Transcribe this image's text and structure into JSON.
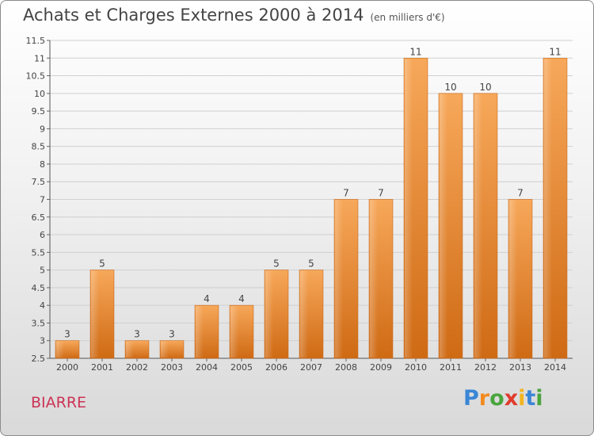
{
  "title": "Achats et Charges Externes 2000 à 2014",
  "subtitle": "(en milliers d'€)",
  "city": "BIARRE",
  "logo": {
    "text": "Proxiti",
    "colors": [
      "#3a86d6",
      "#f28a1f",
      "#49a53d",
      "#e03b2d",
      "#f2b51f",
      "#3a86d6",
      "#49a53d"
    ]
  },
  "chart_data": {
    "type": "bar",
    "categories": [
      "2000",
      "2001",
      "2002",
      "2003",
      "2004",
      "2005",
      "2006",
      "2007",
      "2008",
      "2009",
      "2010",
      "2011",
      "2012",
      "2013",
      "2014"
    ],
    "values": [
      3,
      5,
      3,
      3,
      4,
      4,
      5,
      5,
      7,
      7,
      11,
      10,
      10,
      7,
      11
    ],
    "data_labels": [
      "3",
      "5",
      "3",
      "3",
      "4",
      "4",
      "5",
      "5",
      "7",
      "7",
      "11",
      "10",
      "10",
      "7",
      "11"
    ],
    "title": "Achats et Charges Externes 2000 à 2014",
    "xlabel": "",
    "ylabel": "",
    "ylim": [
      2.5,
      11.5
    ],
    "yticks": [
      "2.5",
      "3",
      "3.5",
      "4",
      "4.5",
      "5",
      "5.5",
      "6",
      "6.5",
      "7",
      "7.5",
      "8",
      "8.5",
      "9",
      "9.5",
      "10",
      "10.5",
      "11",
      "11.5"
    ],
    "grid": true,
    "bar_color": "#f08a2a"
  }
}
